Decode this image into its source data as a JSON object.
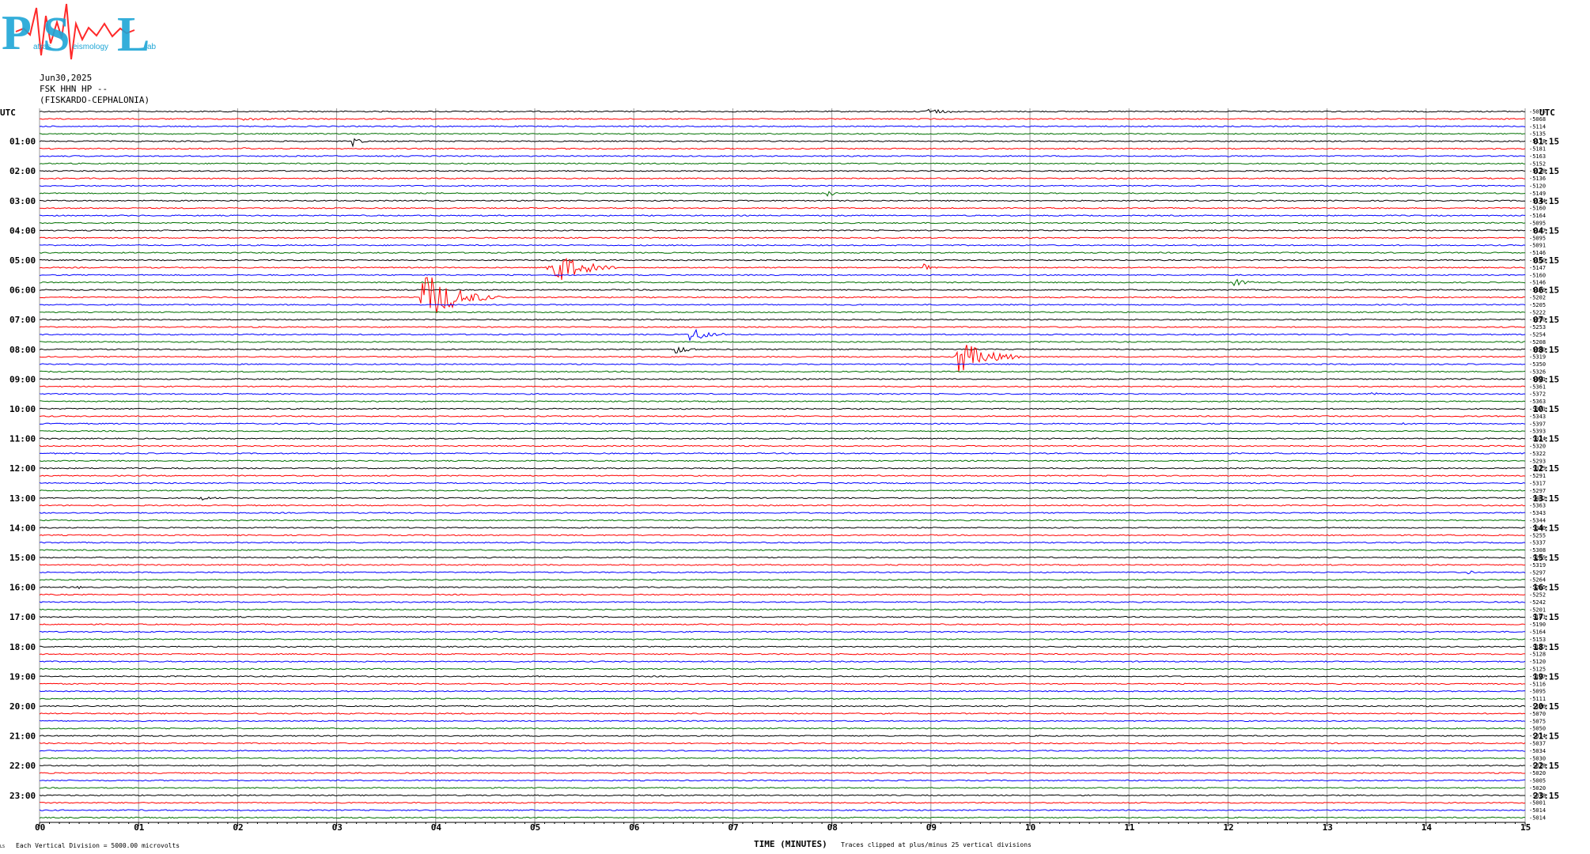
{
  "logo": {
    "letters": [
      "P",
      "S",
      "L"
    ],
    "words": [
      "atras",
      "eismology",
      "ab"
    ],
    "colors": {
      "letters": "#1fa6d6",
      "wave": "#ff2a2a"
    }
  },
  "header": {
    "date": "Jun30,2025",
    "channel": "FSK HHN HP --",
    "station": "(FISKARDO-CEPHALONIA)"
  },
  "footer": {
    "corner_mark": "LS",
    "scale_note": "Each Vertical Division = 5000.00 microvolts",
    "xlabel": "TIME (MINUTES)",
    "clip_note": "Traces clipped at plus/minus 25 vertical divisions"
  },
  "chart_data": {
    "type": "line",
    "title": "",
    "xlabel": "TIME (MINUTES)",
    "ylabel": "",
    "xlim": [
      0,
      15
    ],
    "x_ticks": [
      "00",
      "01",
      "02",
      "03",
      "04",
      "05",
      "06",
      "07",
      "08",
      "09",
      "10",
      "11",
      "12",
      "13",
      "14",
      "15"
    ],
    "left_unit": "UTC",
    "right_unit": "UTC",
    "left_hours": [
      "01:00",
      "02:00",
      "03:00",
      "04:00",
      "05:00",
      "06:00",
      "07:00",
      "08:00",
      "09:00",
      "10:00",
      "11:00",
      "12:00",
      "13:00",
      "14:00",
      "15:00",
      "16:00",
      "17:00",
      "18:00",
      "19:00",
      "20:00",
      "21:00",
      "22:00",
      "23:00"
    ],
    "right_hours": [
      "01:15",
      "02:15",
      "03:15",
      "04:15",
      "05:15",
      "06:15",
      "07:15",
      "08:15",
      "09:15",
      "10:15",
      "11:15",
      "12:15",
      "13:15",
      "14:15",
      "15:15",
      "16:15",
      "17:15",
      "18:15",
      "19:15",
      "20:15",
      "21:15",
      "22:15",
      "23:15"
    ],
    "trace_colors": [
      "#000000",
      "#ff0000",
      "#0000ff",
      "#007000"
    ],
    "trace_count": 96,
    "offsets": [
      "-5075",
      "-5068",
      "-5114",
      "-5135",
      "-5178",
      "-5181",
      "-5163",
      "-5152",
      "-5138",
      "-5136",
      "-5120",
      "-5149",
      "-5144",
      "-5160",
      "-5164",
      "-5095",
      "-5137",
      "-5095",
      "-5091",
      "-5146",
      "-5160",
      "-5147",
      "-5160",
      "-5146",
      "-5179",
      "-5202",
      "-5205",
      "-5222",
      "-5250",
      "-5253",
      "-5254",
      "-5208",
      "-5290",
      "-5319",
      "-5350",
      "-5326",
      "-5321",
      "-5361",
      "-5372",
      "-5363",
      "-5371",
      "-5343",
      "-5397",
      "-5393",
      "-5324",
      "-5320",
      "-5322",
      "-5293",
      "-5315",
      "-5291",
      "-5317",
      "-5297",
      "-5402",
      "-5363",
      "-5343",
      "-5344",
      "-5316",
      "-5255",
      "-5337",
      "-5308",
      "-5285",
      "-5319",
      "-5297",
      "-5264",
      "-5255",
      "-5252",
      "-5242",
      "-5201",
      "-5181",
      "-5190",
      "-5164",
      "-5153",
      "-5137",
      "-5128",
      "-5120",
      "-5125",
      "-5127",
      "-5116",
      "-5095",
      "-5111",
      "-5126",
      "-5070",
      "-5075",
      "-5050",
      "-5074",
      "-5037",
      "-5034",
      "-5030",
      "-5018",
      "-5020",
      "-5005",
      "-5020",
      "-5018",
      "-5001",
      "-5014",
      "-5014"
    ],
    "events": [
      {
        "trace": 0,
        "minute": 8.95,
        "amplitude": 0.7,
        "duration": 0.35
      },
      {
        "trace": 1,
        "minute": 2.05,
        "amplitude": 0.2,
        "duration": 0.8
      },
      {
        "trace": 4,
        "minute": 3.15,
        "amplitude": 0.8,
        "duration": 0.2
      },
      {
        "trace": 5,
        "minute": 2.05,
        "amplitude": 0.6,
        "duration": 0.1
      },
      {
        "trace": 11,
        "minute": 7.95,
        "amplitude": 0.6,
        "duration": 0.2
      },
      {
        "trace": 21,
        "minute": 5.12,
        "amplitude": 3.2,
        "duration": 0.7
      },
      {
        "trace": 21,
        "minute": 8.9,
        "amplitude": 0.8,
        "duration": 0.2
      },
      {
        "trace": 23,
        "minute": 12.05,
        "amplitude": 0.7,
        "duration": 0.25
      },
      {
        "trace": 25,
        "minute": 3.85,
        "amplitude": 4.2,
        "duration": 0.8
      },
      {
        "trace": 30,
        "minute": 6.55,
        "amplitude": 1.2,
        "duration": 0.45
      },
      {
        "trace": 32,
        "minute": 6.42,
        "amplitude": 1.0,
        "duration": 0.25
      },
      {
        "trace": 33,
        "minute": 9.25,
        "amplitude": 2.8,
        "duration": 0.7
      },
      {
        "trace": 38,
        "minute": 13.45,
        "amplitude": 0.4,
        "duration": 0.2
      },
      {
        "trace": 42,
        "minute": 13.75,
        "amplitude": 0.4,
        "duration": 0.1
      },
      {
        "trace": 52,
        "minute": 1.62,
        "amplitude": 0.7,
        "duration": 0.2
      },
      {
        "trace": 55,
        "minute": 13.85,
        "amplitude": 0.3,
        "duration": 0.05
      },
      {
        "trace": 62,
        "minute": 14.42,
        "amplitude": 0.4,
        "duration": 0.1
      },
      {
        "trace": 64,
        "minute": 0.38,
        "amplitude": 0.4,
        "duration": 0.1
      }
    ]
  }
}
